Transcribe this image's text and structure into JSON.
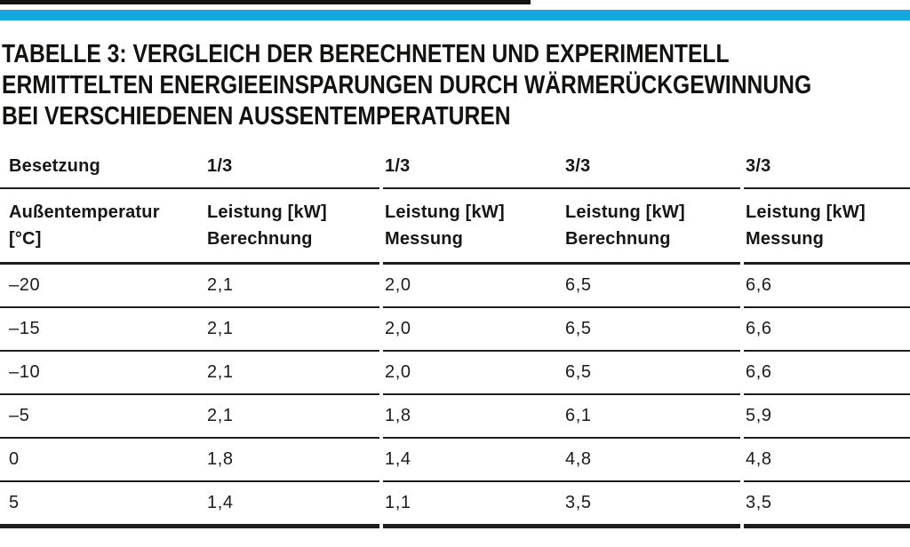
{
  "meta": {
    "accent_color": "#18a6e2",
    "rule_color": "#1d1d1b",
    "text_color": "#161615"
  },
  "title": {
    "lines": [
      "TABELLE 3: VERGLEICH DER BERECHNETEN UND EXPERIMENTELL",
      "ERMITTELTEN ENERGIEEINSPARUNGEN DURCH WÄRMERÜCKGEWINNUNG",
      "BEI VERSCHIEDENEN AUSSENTEMPERATUREN"
    ]
  },
  "table": {
    "occupancy": {
      "label": "Besetzung",
      "values": [
        "1/3",
        "1/3",
        "3/3",
        "3/3"
      ]
    },
    "header": {
      "col1": {
        "line1": "Außentemperatur",
        "line2": "[°C]"
      },
      "cols": [
        {
          "line1": "Leistung [kW]",
          "line2": "Berechnung"
        },
        {
          "line1": "Leistung [kW]",
          "line2": "Messung"
        },
        {
          "line1": "Leistung [kW]",
          "line2": "Berechnung"
        },
        {
          "line1": "Leistung [kW]",
          "line2": "Messung"
        }
      ]
    },
    "rows": [
      {
        "temp": "–20",
        "values": [
          "2,1",
          "2,0",
          "6,5",
          "6,6"
        ]
      },
      {
        "temp": "–15",
        "values": [
          "2,1",
          "2,0",
          "6,5",
          "6,6"
        ]
      },
      {
        "temp": "–10",
        "values": [
          "2,1",
          "2,0",
          "6,5",
          "6,6"
        ]
      },
      {
        "temp": "–5",
        "values": [
          "2,1",
          "1,8",
          "6,1",
          "5,9"
        ]
      },
      {
        "temp": "0",
        "values": [
          "1,8",
          "1,4",
          "4,8",
          "4,8"
        ]
      },
      {
        "temp": "5",
        "values": [
          "1,4",
          "1,1",
          "3,5",
          "3,5"
        ]
      }
    ]
  },
  "chart_data": {
    "type": "table",
    "title": "Tabelle 3: Vergleich der berechneten und experimentell ermittelten Energieeinsparungen durch Wärmerückgewinnung bei verschiedenen Aussentemperaturen",
    "columns": [
      "Außentemperatur [°C]",
      "Leistung [kW] Berechnung (Besetzung 1/3)",
      "Leistung [kW] Messung (Besetzung 1/3)",
      "Leistung [kW] Berechnung (Besetzung 3/3)",
      "Leistung [kW] Messung (Besetzung 3/3)"
    ],
    "x": [
      -20,
      -15,
      -10,
      -5,
      0,
      5
    ],
    "series": [
      {
        "name": "Berechnung 1/3",
        "values": [
          2.1,
          2.1,
          2.1,
          2.1,
          1.8,
          1.4
        ]
      },
      {
        "name": "Messung 1/3",
        "values": [
          2.0,
          2.0,
          2.0,
          1.8,
          1.4,
          1.1
        ]
      },
      {
        "name": "Berechnung 3/3",
        "values": [
          6.5,
          6.5,
          6.5,
          6.1,
          4.8,
          3.5
        ]
      },
      {
        "name": "Messung 3/3",
        "values": [
          6.6,
          6.6,
          6.6,
          5.9,
          4.8,
          3.5
        ]
      }
    ]
  }
}
